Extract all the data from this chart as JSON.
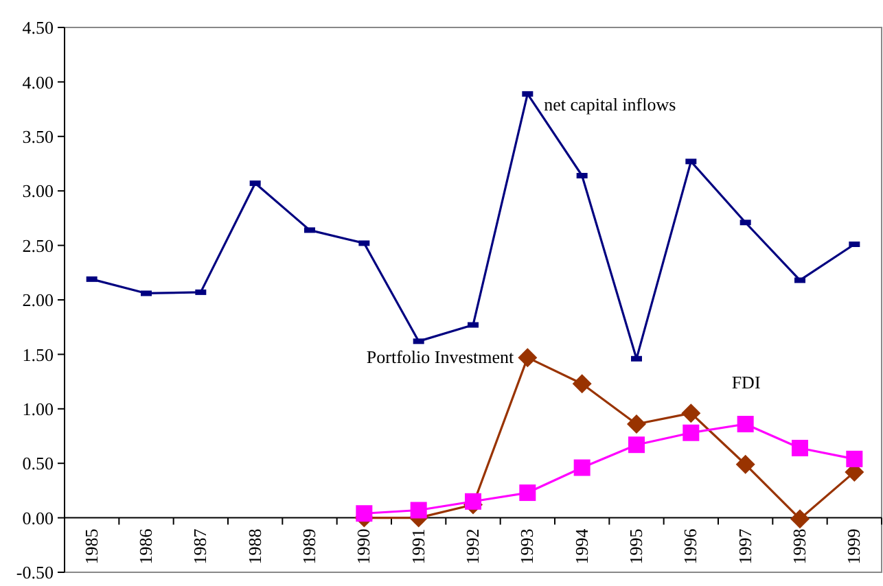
{
  "chart_data": {
    "type": "line",
    "categories": [
      "1985",
      "1986",
      "1987",
      "1988",
      "1989",
      "1990",
      "1991",
      "1992",
      "1993",
      "1994",
      "1995",
      "1996",
      "1997",
      "1998",
      "1999"
    ],
    "ylim": [
      -0.5,
      4.5
    ],
    "yticks": [
      {
        "value": -0.5,
        "label": "-0.50"
      },
      {
        "value": 0,
        "label": "0.00"
      },
      {
        "value": 0.5,
        "label": "0.50"
      },
      {
        "value": 1,
        "label": "1.00"
      },
      {
        "value": 1.5,
        "label": "1.50"
      },
      {
        "value": 2,
        "label": "2.00"
      },
      {
        "value": 2.5,
        "label": "2.50"
      },
      {
        "value": 3,
        "label": "3.00"
      },
      {
        "value": 3.5,
        "label": "3.50"
      },
      {
        "value": 4,
        "label": "4.00"
      },
      {
        "value": 4.5,
        "label": "4.50"
      }
    ],
    "series": [
      {
        "name": "net capital inflows",
        "color": "#000080",
        "marker": "square",
        "values": [
          2.19,
          2.06,
          2.07,
          3.07,
          2.64,
          2.52,
          1.62,
          1.77,
          3.89,
          3.14,
          1.46,
          3.27,
          2.71,
          2.18,
          2.51
        ]
      },
      {
        "name": "Portfolio Investment",
        "color": "#993300",
        "marker": "diamond",
        "values": [
          null,
          null,
          null,
          null,
          null,
          0,
          0,
          0.12,
          1.47,
          1.23,
          0.86,
          0.96,
          0.49,
          -0.01,
          0.42
        ]
      },
      {
        "name": "FDI",
        "color": "#ff00ff",
        "marker": "square",
        "values": [
          null,
          null,
          null,
          null,
          null,
          0.04,
          0.07,
          0.15,
          0.23,
          0.46,
          0.67,
          0.78,
          0.86,
          0.64,
          0.54
        ]
      }
    ]
  }
}
